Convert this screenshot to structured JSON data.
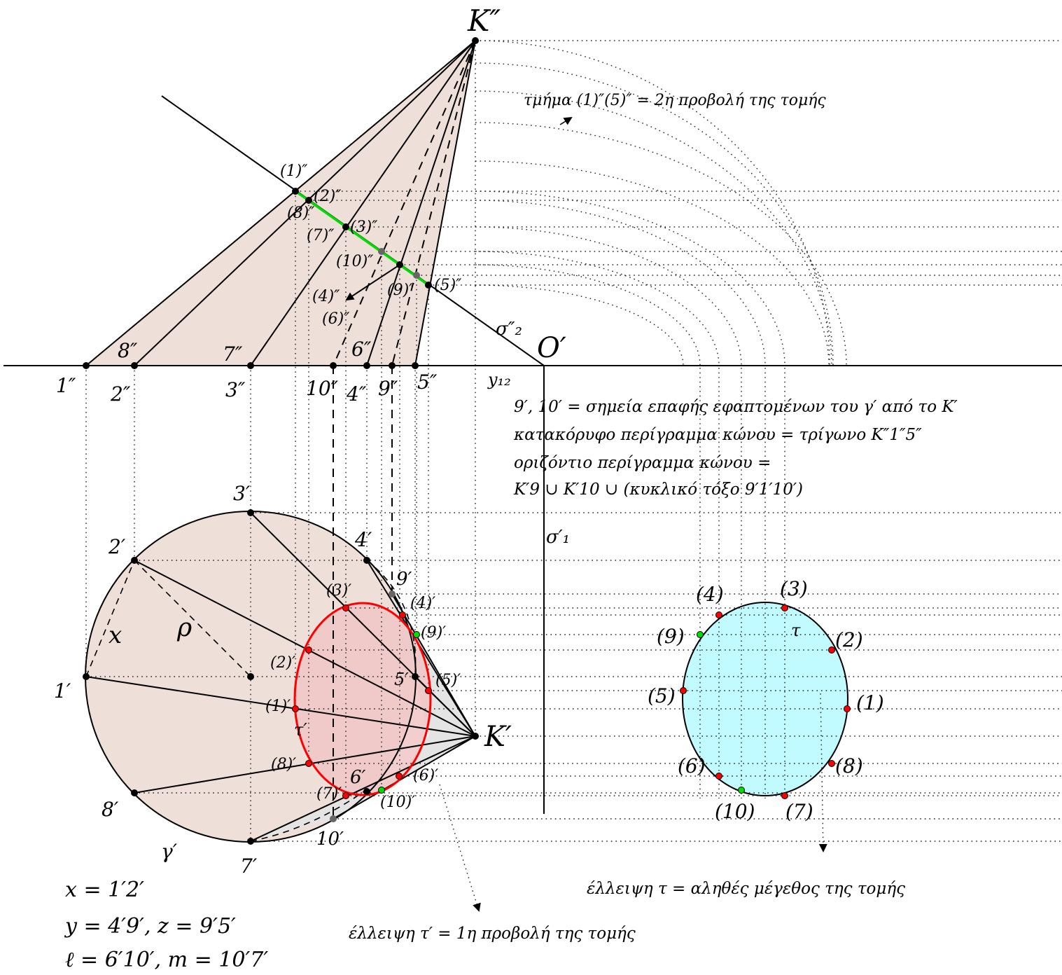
{
  "labels": {
    "k2": "K″",
    "k1": "K′",
    "o": "O′",
    "y12": "y₁₂",
    "sigma2": "σ″₂",
    "sigma1": "σ′₁",
    "rho": "ρ",
    "x": "x",
    "gamma": "γ′",
    "tau": "τ",
    "tau1": "τ′",
    "b1": "1″",
    "b2": "2″",
    "b3": "3″",
    "b4": "4″",
    "b5": "5″",
    "b6": "6″",
    "b7": "7″",
    "b8": "8″",
    "b9": "9″",
    "b10": "10″",
    "s1": "(1)″",
    "s2": "(2)″",
    "s3": "(3)″",
    "s5": "(5)″",
    "s7": "(7)″",
    "s8": "(8)″",
    "s9": "(9)″",
    "s10": "(10)″",
    "s4": "(4)″",
    "s6": "(6)″",
    "p1": "1′",
    "p2": "2′",
    "p3": "3′",
    "p4": "4′",
    "p5": "5′",
    "p6": "6′",
    "p7": "7′",
    "p8": "8′",
    "p9": "9′",
    "p10": "10′",
    "q1": "(1)′",
    "q2": "(2)′",
    "q3": "(3)′",
    "q4": "(4)′",
    "q5": "(5)′",
    "q6": "(6)′",
    "q7": "(7)′",
    "q8": "(8)′",
    "q9": "(9)′",
    "q10": "(10)′",
    "t1": "(1)",
    "t2": "(2)",
    "t3": "(3)",
    "t4": "(4)",
    "t5": "(5)",
    "t6": "(6)",
    "t7": "(7)",
    "t8": "(8)",
    "t9": "(9)",
    "t10": "(10)"
  },
  "notes": {
    "segment": "τμήμα (1)″(5)″ = 2η προβολή της τομής",
    "line1": "9′, 10′ = σημεία επαφής εφαπτομένων του γ′ από το K′",
    "line2": "κατακόρυφο περίγραμμα κώνου = τρίγωνο K″1″5″",
    "line3": "οριζόντιο περίγραμμα κώνου =",
    "line4": "K′9 ∪ K′10 ∪ (κυκλικό τόξο 9′1′10′)",
    "ellipse_true": "έλλειψη τ = αληθές μέγεθος της τομής",
    "ellipse_proj": "έλλειψη τ′ = 1η προβολή της τομής",
    "eq1": "x = 1′2′",
    "eq2": "y = 4′9′,   z = 9′5′",
    "eq3": "ℓ = 6′10′,   m = 10′7′"
  },
  "colors": {
    "cone_fill": "#efdfd9",
    "section_fill": "#f0c6c6",
    "true_size_fill": "#c1fbff",
    "section_curve": "#ff0000",
    "section_line": "#00dd00",
    "point_red": "#ff0000",
    "point_green": "#00dd00"
  }
}
